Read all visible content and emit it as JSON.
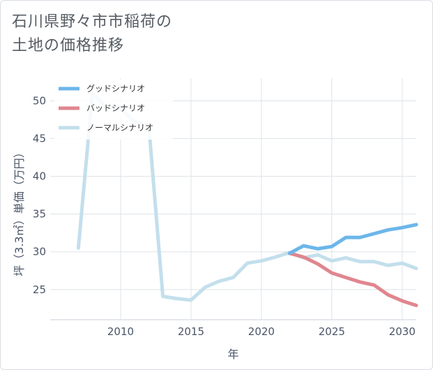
{
  "title": {
    "line1": "石川県野々市市稲荷の",
    "line2": "土地の価格推移"
  },
  "chart_data": {
    "type": "line",
    "xlabel": "年",
    "ylabel": "坪（3.3㎡）単価（万円）",
    "xlim": [
      2005,
      2031
    ],
    "ylim": [
      21,
      53
    ],
    "xticks": [
      2010,
      2015,
      2020,
      2025,
      2030
    ],
    "yticks": [
      25,
      30,
      35,
      40,
      45,
      50
    ],
    "grid": true,
    "legend_position": "top-left",
    "series": [
      {
        "name": "グッドシナリオ",
        "color": "#6cb6ea",
        "x": [
          2022,
          2023,
          2024,
          2025,
          2026,
          2027,
          2028,
          2029,
          2030,
          2031
        ],
        "values": [
          29.8,
          30.8,
          30.4,
          30.7,
          31.9,
          31.9,
          32.4,
          32.9,
          33.2,
          33.6
        ]
      },
      {
        "name": "バッドシナリオ",
        "color": "#e0868f",
        "x": [
          2022,
          2023,
          2024,
          2025,
          2026,
          2027,
          2028,
          2029,
          2030,
          2031
        ],
        "values": [
          29.8,
          29.3,
          28.4,
          27.2,
          26.6,
          26.0,
          25.6,
          24.3,
          23.5,
          22.9
        ]
      },
      {
        "name": "ノーマルシナリオ",
        "color": "#c3dfec",
        "x": [
          2007,
          2008,
          2009,
          2010,
          2011,
          2012,
          2013,
          2014,
          2015,
          2016,
          2017,
          2018,
          2019,
          2020,
          2021,
          2022,
          2023,
          2024,
          2025,
          2026,
          2027,
          2028,
          2029,
          2030,
          2031
        ],
        "values": [
          30.5,
          51.0,
          49.2,
          49.0,
          47.2,
          46.8,
          24.1,
          23.8,
          23.6,
          25.3,
          26.1,
          26.6,
          28.5,
          28.8,
          29.3,
          29.9,
          29.2,
          29.6,
          28.8,
          29.2,
          28.7,
          28.7,
          28.2,
          28.5,
          27.8
        ]
      }
    ]
  }
}
